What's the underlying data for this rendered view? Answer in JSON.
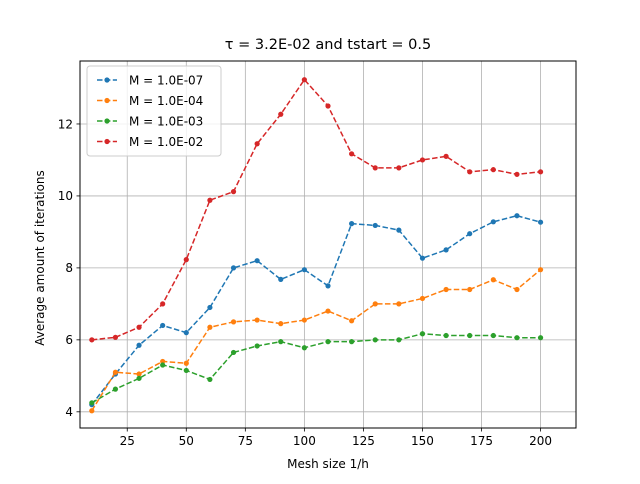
{
  "chart_data": {
    "type": "line",
    "title": "τ = 3.2E-02 and tstart = 0.5",
    "xlabel": "Mesh size 1/h",
    "ylabel": "Average amount of iterations",
    "xlim": [
      5,
      215
    ],
    "ylim": [
      3.55,
      13.75
    ],
    "xticks": [
      25,
      50,
      75,
      100,
      125,
      150,
      175,
      200
    ],
    "yticks": [
      4,
      6,
      8,
      10,
      12
    ],
    "grid": true,
    "legend_position": "upper-left",
    "x": [
      10,
      20,
      30,
      40,
      50,
      60,
      70,
      80,
      90,
      100,
      110,
      120,
      130,
      140,
      150,
      160,
      170,
      180,
      190,
      200
    ],
    "series": [
      {
        "name": "M = 1.0E-07",
        "color": "#1f77b4",
        "values": [
          4.2,
          5.05,
          5.85,
          6.4,
          6.2,
          6.9,
          8.0,
          8.2,
          7.68,
          7.95,
          7.5,
          9.23,
          9.18,
          9.05,
          8.27,
          8.5,
          8.95,
          9.28,
          9.45,
          9.27
        ]
      },
      {
        "name": "M = 1.0E-04",
        "color": "#ff7f0e",
        "values": [
          4.03,
          5.1,
          5.05,
          5.4,
          5.35,
          6.35,
          6.5,
          6.55,
          6.45,
          6.55,
          6.8,
          6.53,
          7.0,
          7.0,
          7.15,
          7.4,
          7.4,
          7.67,
          7.4,
          7.95
        ]
      },
      {
        "name": "M = 1.0E-03",
        "color": "#2ca02c",
        "values": [
          4.25,
          4.63,
          4.93,
          5.3,
          5.15,
          4.9,
          5.65,
          5.83,
          5.95,
          5.78,
          5.95,
          5.95,
          6.0,
          6.0,
          6.17,
          6.12,
          6.12,
          6.12,
          6.06,
          6.06
        ]
      },
      {
        "name": "M = 1.0E-02",
        "color": "#d62728",
        "values": [
          6.0,
          6.07,
          6.35,
          7.0,
          8.23,
          9.88,
          10.12,
          11.45,
          12.27,
          13.23,
          12.5,
          11.17,
          10.78,
          10.78,
          11.0,
          11.1,
          10.67,
          10.73,
          10.6,
          10.67
        ]
      }
    ]
  }
}
